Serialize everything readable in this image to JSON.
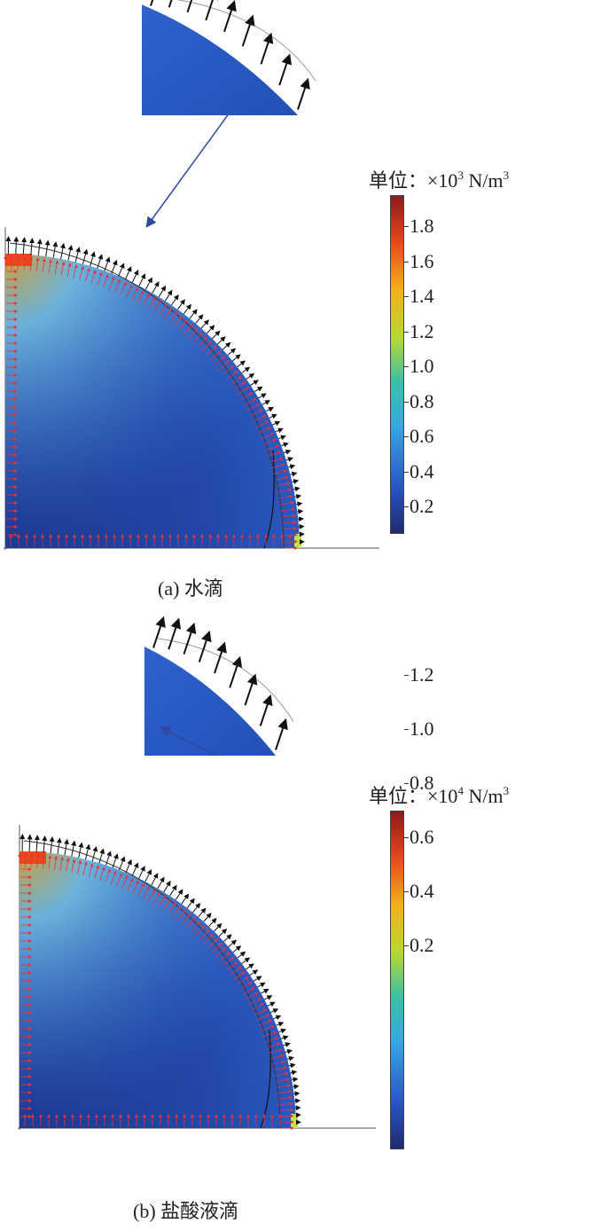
{
  "panels": [
    {
      "caption": "(a) 水滴",
      "unit": {
        "prefix": "单位：",
        "mult": "×10",
        "exp": "3",
        "suffix": " N/m",
        "exp2": "3"
      },
      "colorbar": {
        "ticks": [
          "1.8",
          "1.6",
          "1.4",
          "1.2",
          "1.0",
          "0.8",
          "0.6",
          "0.4",
          "0.2"
        ]
      }
    },
    {
      "caption": "(b) 盐酸液滴",
      "unit": {
        "prefix": "单位：",
        "mult": "×10",
        "exp": "4",
        "suffix": " N/m",
        "exp2": "3"
      },
      "colorbar": {
        "ticks": [
          "1.2",
          "1.0",
          "0.8",
          "0.6",
          "0.4",
          "0.2"
        ]
      }
    }
  ],
  "colors": {
    "colormap": [
      "#1f2a6e",
      "#2a56c6",
      "#38a8e0",
      "#3cc0a6",
      "#b8d734",
      "#f3b21a",
      "#e8491c",
      "#8b1a1a"
    ],
    "field_dark": "#1e3f99",
    "field_mid": "#2a56c6",
    "arrow_black": "#111111",
    "arrow_red": "#e8323a",
    "pointer_line": "#2f4aa0"
  }
}
